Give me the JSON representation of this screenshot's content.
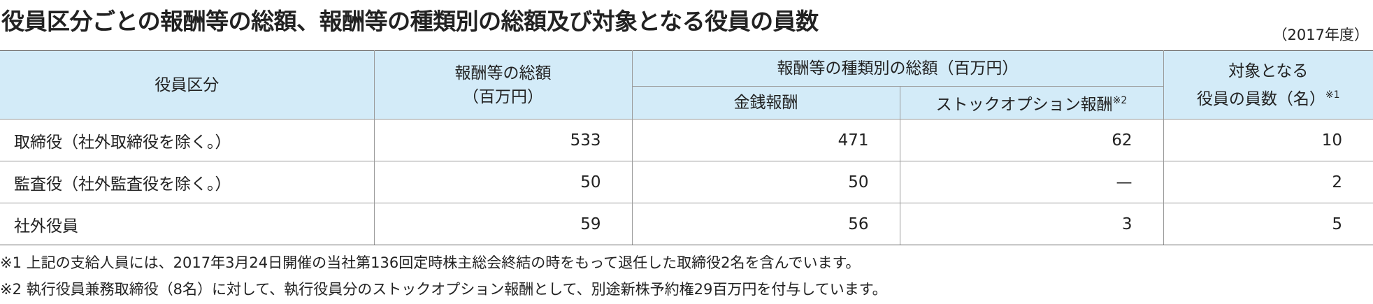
{
  "header": {
    "title": "役員区分ごとの報酬等の総額、報酬等の種類別の総額及び対象となる役員の員数",
    "period": "（2017年度）"
  },
  "table": {
    "columns": {
      "category": "役員区分",
      "total": [
        "報酬等の総額",
        "（百万円）"
      ],
      "by_type": "報酬等の種類別の総額（百万円）",
      "cash": "金銭報酬",
      "stock": {
        "text": "ストックオプション報酬",
        "note": "※2"
      },
      "count": {
        "lines": [
          "対象となる",
          "役員の員数（名）"
        ],
        "note": "※1"
      }
    },
    "rows": [
      [
        "取締役（社外取締役を除く。）",
        533,
        471,
        62,
        10
      ],
      [
        "監査役（社外監査役を除く。）",
        50,
        50,
        "—",
        2
      ],
      [
        "社外役員",
        59,
        56,
        3,
        5
      ]
    ]
  },
  "notes": [
    "※1 上記の支給人員には、2017年3月24日開催の当社第136回定時株主総会終結の時をもって退任した取締役2名を含んでいます。",
    "※2 執行役員兼務取締役（8名）に対して、執行役員分のストックオプション報酬として、別途新株予約権29百万円を付与しています。"
  ]
}
